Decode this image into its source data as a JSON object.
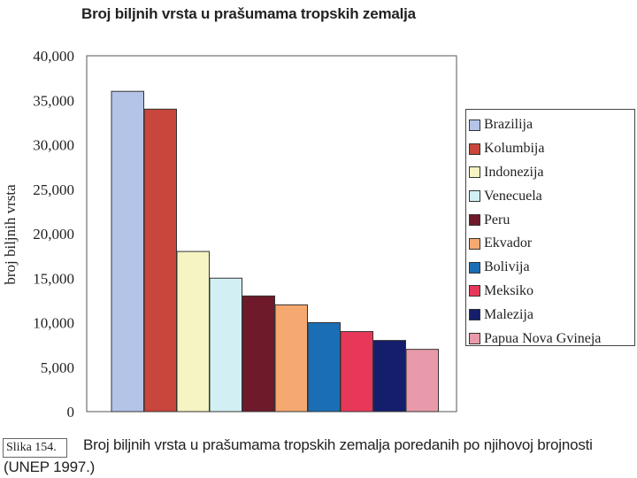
{
  "chart_data": {
    "type": "bar",
    "title": "Broj biljnih vrsta u prašumama tropskih zemalja",
    "ylabel": "broj biljnih vrsta",
    "xlabel": "",
    "ylim": [
      0,
      40000
    ],
    "yticks": [
      "0",
      "5,000",
      "10,000",
      "15,000",
      "20,000",
      "25,000",
      "30,000",
      "35,000",
      "40,000"
    ],
    "grid": false,
    "legend_position": "right",
    "categories": [
      "Brazilija",
      "Kolumbija",
      "Indonezija",
      "Venecuela",
      "Peru",
      "Ekvador",
      "Bolivija",
      "Meksiko",
      "Malezija",
      "Papua Nova Gvineja"
    ],
    "values": [
      36000,
      34000,
      18000,
      15000,
      13000,
      12000,
      10000,
      9000,
      8000,
      7000
    ],
    "colors": [
      "#b4c3e8",
      "#c8463c",
      "#f6f4c2",
      "#d2f0f4",
      "#6e1a2a",
      "#f5a870",
      "#1a6eb4",
      "#e8385a",
      "#141e6a",
      "#e89aaa"
    ]
  },
  "caption": {
    "label": "Slika 154.",
    "text": "Broj biljnih vrsta u prašumama tropskih zemalja poredanih po njihovoj brojnosti (UNEP 1997.)"
  }
}
